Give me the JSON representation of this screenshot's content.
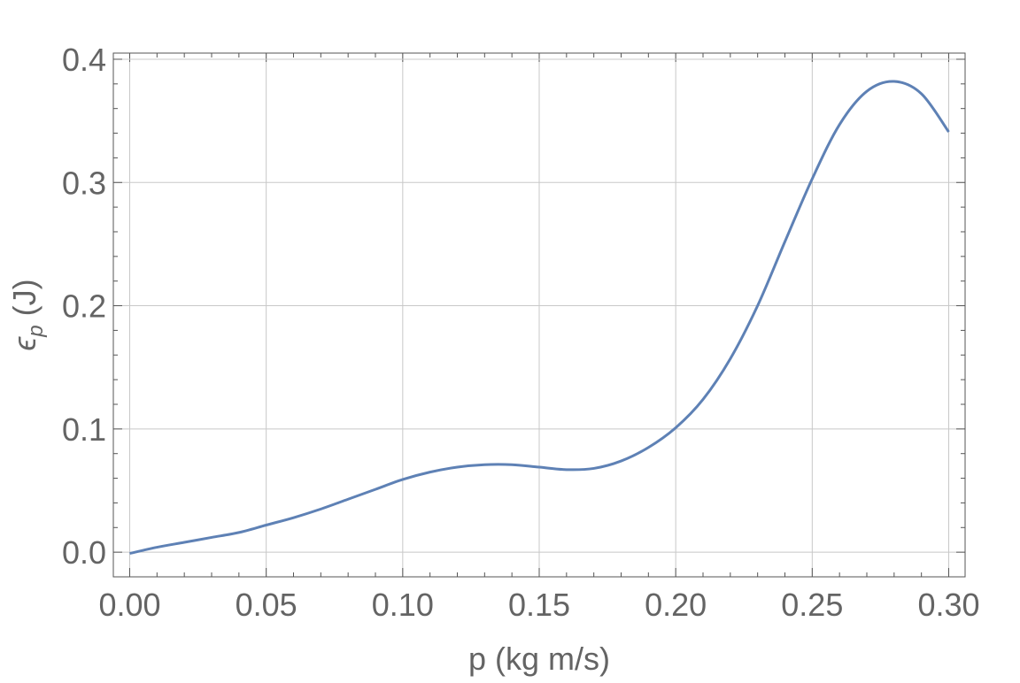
{
  "chart_data": {
    "type": "line",
    "x_label": "p (kg m/s)",
    "y_label": {
      "symbol": "ϵ",
      "subscript": "p",
      "unit": "(J)"
    },
    "x": [
      0,
      0.01,
      0.02,
      0.03,
      0.04,
      0.05,
      0.06,
      0.07,
      0.08,
      0.09,
      0.1,
      0.11,
      0.12,
      0.13,
      0.14,
      0.15,
      0.16,
      0.17,
      0.18,
      0.19,
      0.2,
      0.21,
      0.22,
      0.23,
      0.24,
      0.25,
      0.26,
      0.27,
      0.28,
      0.29,
      0.3
    ],
    "series": [
      {
        "color": "#5e81b5",
        "values": [
          -0.001,
          0.004,
          0.008,
          0.012,
          0.016,
          0.022,
          0.028,
          0.035,
          0.043,
          0.051,
          0.059,
          0.065,
          0.069,
          0.071,
          0.071,
          0.069,
          0.067,
          0.068,
          0.074,
          0.085,
          0.101,
          0.124,
          0.157,
          0.2,
          0.252,
          0.303,
          0.347,
          0.374,
          0.382,
          0.372,
          0.341
        ]
      }
    ],
    "xlim": [
      -0.006,
      0.306
    ],
    "ylim": [
      -0.02,
      0.405
    ],
    "xticks": [
      {
        "value": 0,
        "label": "0.00"
      },
      0.05,
      {
        "value": 0.1,
        "label": "0.10"
      },
      0.15,
      {
        "value": 0.2,
        "label": "0.20"
      },
      0.25,
      {
        "value": 0.3,
        "label": "0.30"
      }
    ],
    "yticks": [
      {
        "value": 0,
        "label": "0.0"
      },
      0.1,
      0.2,
      0.3,
      0.4
    ],
    "grid": true
  }
}
